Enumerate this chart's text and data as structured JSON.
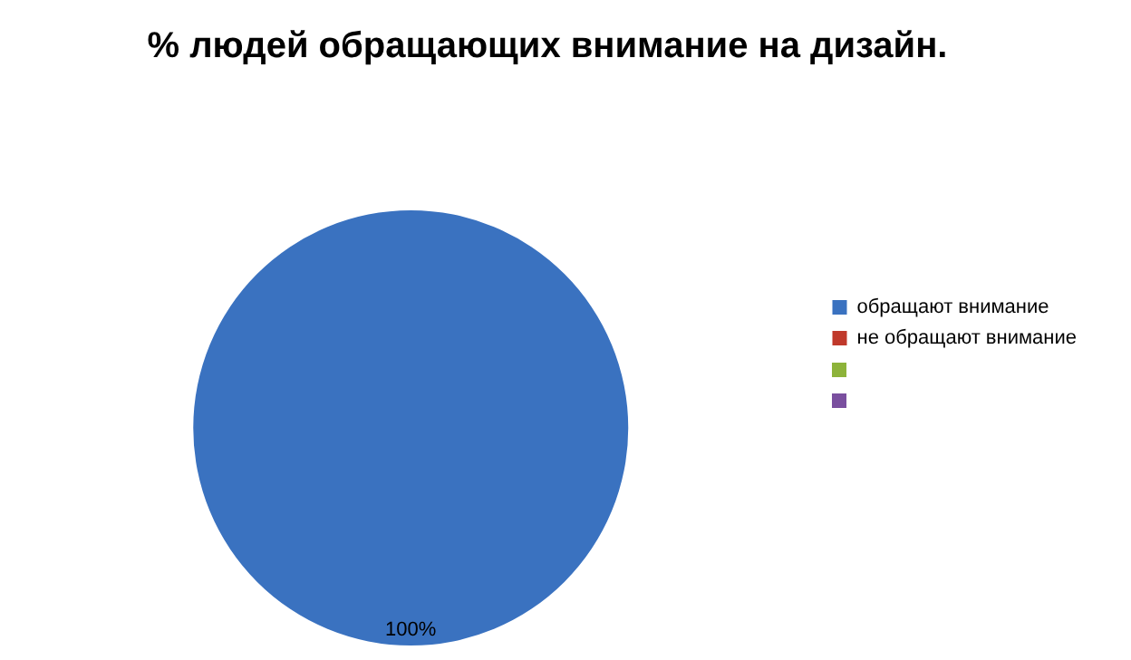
{
  "chart_data": {
    "type": "pie",
    "title": "% людей обращающих внимание на дизайн.",
    "categories": [
      "обращают внимание",
      "не обращают внимание",
      null,
      null
    ],
    "values": [
      100,
      0,
      0,
      0
    ],
    "colors": [
      "#3a72c0",
      "#c0392b",
      "#8db33a",
      "#7a4f9f"
    ],
    "value_labels": [
      "100%",
      null,
      null,
      null
    ],
    "legend": "right"
  }
}
